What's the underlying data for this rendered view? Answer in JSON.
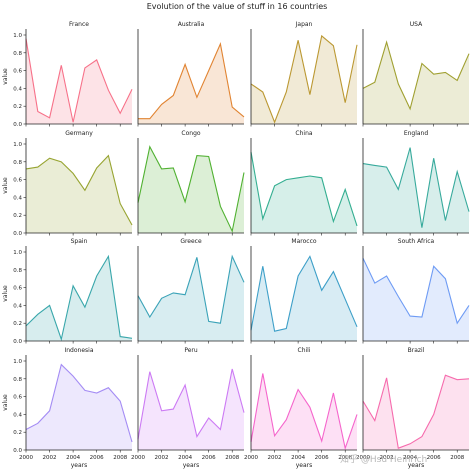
{
  "title": "Evolution of the value of stuff in 16 countries",
  "watermark": "知乎 @Hsu Heinrich",
  "chart_data": [
    {
      "type": "area",
      "title": "France",
      "x": [
        2000,
        2001,
        2002,
        2003,
        2004,
        2005,
        2006,
        2007,
        2008,
        2009
      ],
      "values": [
        0.96,
        0.14,
        0.07,
        0.66,
        0.02,
        0.63,
        0.72,
        0.38,
        0.12,
        0.39
      ],
      "color": "#f77189"
    },
    {
      "type": "area",
      "title": "Australia",
      "x": [
        2000,
        2001,
        2002,
        2003,
        2004,
        2005,
        2006,
        2007,
        2008,
        2009
      ],
      "values": [
        0.06,
        0.06,
        0.22,
        0.32,
        0.67,
        0.3,
        0.6,
        0.9,
        0.19,
        0.08
      ],
      "color": "#e18432"
    },
    {
      "type": "area",
      "title": "Japan",
      "x": [
        2000,
        2001,
        2002,
        2003,
        2004,
        2005,
        2006,
        2007,
        2008,
        2009
      ],
      "values": [
        0.45,
        0.36,
        0.02,
        0.36,
        0.94,
        0.33,
        0.99,
        0.88,
        0.24,
        0.89
      ],
      "color": "#bb9832"
    },
    {
      "type": "area",
      "title": "USA",
      "x": [
        2000,
        2001,
        2002,
        2003,
        2004,
        2005,
        2006,
        2007,
        2008,
        2009
      ],
      "values": [
        0.4,
        0.47,
        0.92,
        0.45,
        0.17,
        0.68,
        0.56,
        0.58,
        0.49,
        0.79
      ],
      "color": "#a0a031"
    },
    {
      "type": "area",
      "title": "Germany",
      "x": [
        2000,
        2001,
        2002,
        2003,
        2004,
        2005,
        2006,
        2007,
        2008,
        2009
      ],
      "values": [
        0.72,
        0.74,
        0.84,
        0.8,
        0.67,
        0.48,
        0.73,
        0.87,
        0.33,
        0.09
      ],
      "color": "#97a431"
    },
    {
      "type": "area",
      "title": "Congo",
      "x": [
        2000,
        2001,
        2002,
        2003,
        2004,
        2005,
        2006,
        2007,
        2008,
        2009
      ],
      "values": [
        0.34,
        0.97,
        0.72,
        0.73,
        0.35,
        0.87,
        0.86,
        0.3,
        0.02,
        0.68
      ],
      "color": "#50b131"
    },
    {
      "type": "area",
      "title": "China",
      "x": [
        2000,
        2001,
        2002,
        2003,
        2004,
        2005,
        2006,
        2007,
        2008,
        2009
      ],
      "values": [
        0.91,
        0.16,
        0.53,
        0.6,
        0.62,
        0.64,
        0.62,
        0.13,
        0.49,
        0.08
      ],
      "color": "#34ae91"
    },
    {
      "type": "area",
      "title": "England",
      "x": [
        2000,
        2001,
        2002,
        2003,
        2004,
        2005,
        2006,
        2007,
        2008,
        2009
      ],
      "values": [
        0.78,
        0.76,
        0.74,
        0.49,
        0.96,
        0.06,
        0.84,
        0.14,
        0.69,
        0.24
      ],
      "color": "#37aa9c"
    },
    {
      "type": "area",
      "title": "Spain",
      "x": [
        2000,
        2001,
        2002,
        2003,
        2004,
        2005,
        2006,
        2007,
        2008,
        2009
      ],
      "values": [
        0.17,
        0.3,
        0.4,
        0.02,
        0.62,
        0.38,
        0.73,
        0.95,
        0.05,
        0.03
      ],
      "color": "#39a7ab"
    },
    {
      "type": "area",
      "title": "Greece",
      "x": [
        2000,
        2001,
        2002,
        2003,
        2004,
        2005,
        2006,
        2007,
        2008,
        2009
      ],
      "values": [
        0.51,
        0.27,
        0.48,
        0.54,
        0.52,
        0.94,
        0.22,
        0.2,
        0.95,
        0.66
      ],
      "color": "#3ba3b8"
    },
    {
      "type": "area",
      "title": "Marocco",
      "x": [
        2000,
        2001,
        2002,
        2003,
        2004,
        2005,
        2006,
        2007,
        2008,
        2009
      ],
      "values": [
        0.12,
        0.84,
        0.11,
        0.14,
        0.73,
        0.95,
        0.57,
        0.78,
        0.47,
        0.16
      ],
      "color": "#3d9fc8"
    },
    {
      "type": "area",
      "title": "South Africa",
      "x": [
        2000,
        2001,
        2002,
        2003,
        2004,
        2005,
        2006,
        2007,
        2008,
        2009
      ],
      "values": [
        0.93,
        0.65,
        0.73,
        0.5,
        0.28,
        0.27,
        0.84,
        0.7,
        0.2,
        0.4
      ],
      "color": "#6e9bf4"
    },
    {
      "type": "area",
      "title": "Indonesia",
      "x": [
        2000,
        2001,
        2002,
        2003,
        2004,
        2005,
        2006,
        2007,
        2008,
        2009
      ],
      "values": [
        0.23,
        0.3,
        0.44,
        0.96,
        0.83,
        0.67,
        0.64,
        0.7,
        0.55,
        0.09
      ],
      "color": "#a48cf4"
    },
    {
      "type": "area",
      "title": "Peru",
      "x": [
        2000,
        2001,
        2002,
        2003,
        2004,
        2005,
        2006,
        2007,
        2008,
        2009
      ],
      "values": [
        0.12,
        0.88,
        0.44,
        0.46,
        0.73,
        0.15,
        0.36,
        0.23,
        0.91,
        0.42
      ],
      "color": "#cc7af4"
    },
    {
      "type": "area",
      "title": "Chili",
      "x": [
        2000,
        2001,
        2002,
        2003,
        2004,
        2005,
        2006,
        2007,
        2008,
        2009
      ],
      "values": [
        0.09,
        0.86,
        0.16,
        0.34,
        0.68,
        0.48,
        0.1,
        0.64,
        0.02,
        0.4
      ],
      "color": "#f565cc"
    },
    {
      "type": "area",
      "title": "Brazil",
      "x": [
        2000,
        2001,
        2002,
        2003,
        2004,
        2005,
        2006,
        2007,
        2008,
        2009
      ],
      "values": [
        0.55,
        0.33,
        0.81,
        0.02,
        0.07,
        0.15,
        0.4,
        0.84,
        0.79,
        0.8
      ],
      "color": "#f66bad"
    }
  ],
  "axes": {
    "ylabel": "value",
    "xlabel": "years",
    "ylim": [
      0,
      1.0
    ],
    "xlim": [
      2000,
      2009
    ],
    "yticks": [
      "0.0",
      "0.2",
      "0.4",
      "0.6",
      "0.8",
      "1.0"
    ],
    "xticks": [
      "2000",
      "2002",
      "2004",
      "2006",
      "2008"
    ]
  }
}
